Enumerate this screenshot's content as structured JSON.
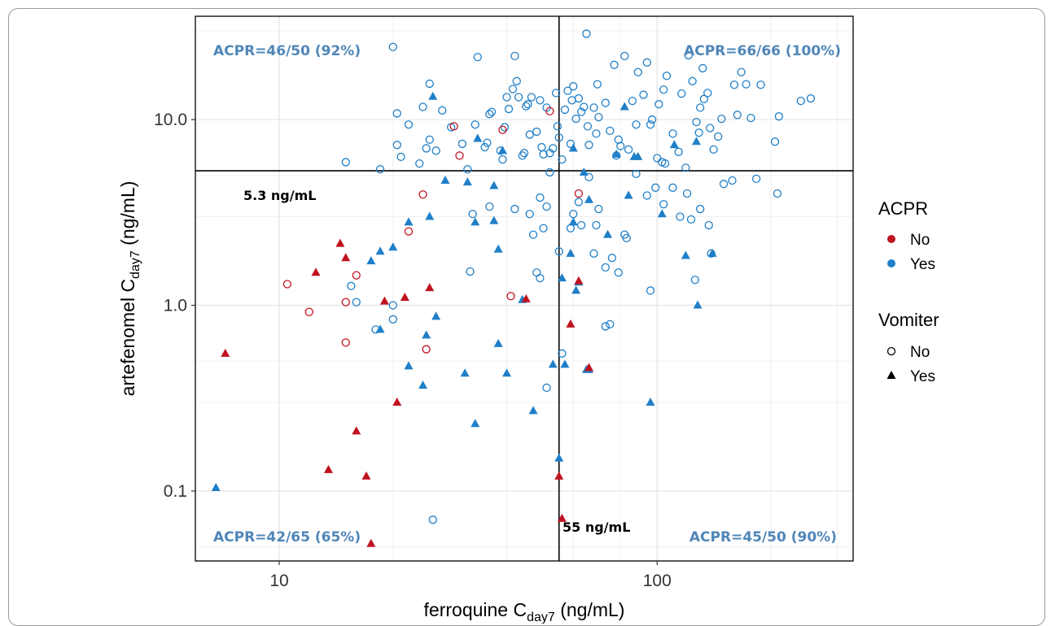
{
  "chart_data": {
    "type": "scatter",
    "xlabel": {
      "main": "ferroquine C",
      "sub": "day7",
      "unit": " (ng/mL)"
    },
    "ylabel": {
      "main": "artefenomel C",
      "sub": "day7",
      "unit": " (ng/mL)"
    },
    "xscale": "log",
    "yscale": "log",
    "xlim": [
      6,
      330
    ],
    "ylim": [
      0.042,
      36
    ],
    "x_ticks": [
      {
        "value": 10,
        "label": "10"
      },
      {
        "value": 100,
        "label": "100"
      }
    ],
    "y_ticks": [
      {
        "value": 0.1,
        "label": "0.1"
      },
      {
        "value": 1,
        "label": "1.0"
      },
      {
        "value": 10,
        "label": "10.0"
      }
    ],
    "grid": true,
    "colors": {
      "No": "#c1121f",
      "Yes": "#1f7fc8"
    },
    "thresholds": {
      "x": {
        "value": 55,
        "label": "55 ng/mL"
      },
      "y": {
        "value": 5.3,
        "label": "5.3 ng/mL"
      }
    },
    "quadrant_labels": {
      "top_left": "ACPR=46/50 (92%)",
      "top_right": "ACPR=66/66 (100%)",
      "bottom_left": "ACPR=42/65 (65%)",
      "bottom_right": "ACPR=45/50 (90%)"
    },
    "legend": {
      "position": "right",
      "acpr": {
        "title": "ACPR",
        "items": [
          {
            "label": "No",
            "color": "#c1121f"
          },
          {
            "label": "Yes",
            "color": "#1f7fc8"
          }
        ]
      },
      "vomiter": {
        "title": "Vomiter",
        "items": [
          {
            "label": "No",
            "shape": "open-circle"
          },
          {
            "label": "Yes",
            "shape": "triangle"
          }
        ]
      }
    },
    "series": [
      {
        "acpr": "Yes",
        "vomiter": "No",
        "points": [
          [
            20,
            24.6
          ],
          [
            15,
            5.9
          ],
          [
            18.5,
            5.4
          ],
          [
            20.5,
            10.8
          ],
          [
            20.5,
            7.3
          ],
          [
            21,
            6.3
          ],
          [
            22,
            9.4
          ],
          [
            23.5,
            5.8
          ],
          [
            24,
            11.7
          ],
          [
            24.5,
            7.0
          ],
          [
            25,
            7.8
          ],
          [
            25,
            15.6
          ],
          [
            26,
            6.8
          ],
          [
            27,
            11.2
          ],
          [
            28.5,
            9.1
          ],
          [
            30.5,
            7.4
          ],
          [
            31.5,
            5.4
          ],
          [
            33,
            9.4
          ],
          [
            33.5,
            21.7
          ],
          [
            35,
            7.1
          ],
          [
            35.5,
            7.5
          ],
          [
            36,
            10.7
          ],
          [
            36.5,
            11.0
          ],
          [
            38.5,
            6.8
          ],
          [
            39,
            6.1
          ],
          [
            39.5,
            9.1
          ],
          [
            40,
            13.2
          ],
          [
            40.5,
            11.4
          ],
          [
            41.5,
            14.6
          ],
          [
            42,
            22.0
          ],
          [
            42.5,
            16.1
          ],
          [
            43,
            13.2
          ],
          [
            44,
            6.4
          ],
          [
            44.5,
            6.6
          ],
          [
            45,
            11.8
          ],
          [
            45.5,
            12.1
          ],
          [
            46,
            8.3
          ],
          [
            46.5,
            13.2
          ],
          [
            48,
            8.6
          ],
          [
            49,
            12.7
          ],
          [
            49.5,
            7.1
          ],
          [
            50,
            6.5
          ],
          [
            51,
            11.6
          ],
          [
            52,
            6.6
          ],
          [
            53,
            7.0
          ],
          [
            54,
            13.9
          ],
          [
            54.5,
            9.2
          ],
          [
            55,
            8.0
          ],
          [
            56,
            6.1
          ],
          [
            57,
            11.3
          ],
          [
            58,
            14.3
          ],
          [
            59,
            7.4
          ],
          [
            59.5,
            12.7
          ],
          [
            60,
            15.1
          ],
          [
            61,
            10.1
          ],
          [
            62,
            13.0
          ],
          [
            63,
            11.0
          ],
          [
            64,
            11.7
          ],
          [
            65,
            29.0
          ],
          [
            65.5,
            9.2
          ],
          [
            66,
            7.3
          ],
          [
            68,
            11.6
          ],
          [
            69,
            8.4
          ],
          [
            69.5,
            15.5
          ],
          [
            70,
            10.3
          ],
          [
            73,
            12.3
          ],
          [
            75,
            8.7
          ],
          [
            77,
            19.7
          ],
          [
            78,
            6.4
          ],
          [
            79,
            7.8
          ],
          [
            80,
            7.2
          ],
          [
            82,
            22.0
          ],
          [
            84,
            6.9
          ],
          [
            86,
            12.6
          ],
          [
            88,
            9.4
          ],
          [
            89,
            18.0
          ],
          [
            92,
            13.6
          ],
          [
            94,
            20.3
          ],
          [
            96,
            9.4
          ],
          [
            97,
            10.0
          ],
          [
            100,
            6.2
          ],
          [
            101,
            12.1
          ],
          [
            103,
            5.9
          ],
          [
            104,
            14.5
          ],
          [
            105,
            5.8
          ],
          [
            106,
            17.2
          ],
          [
            110,
            8.4
          ],
          [
            114,
            6.7
          ],
          [
            116,
            13.8
          ],
          [
            119,
            5.5
          ],
          [
            121,
            22.2
          ],
          [
            124,
            16.1
          ],
          [
            127,
            9.7
          ],
          [
            129,
            8.5
          ],
          [
            130,
            11.6
          ],
          [
            132,
            18.9
          ],
          [
            133,
            12.9
          ],
          [
            136,
            13.9
          ],
          [
            138,
            9.0
          ],
          [
            141,
            6.9
          ],
          [
            145,
            8.1
          ],
          [
            148,
            10.1
          ],
          [
            160,
            15.4
          ],
          [
            163,
            10.6
          ],
          [
            167,
            18.0
          ],
          [
            172,
            15.5
          ],
          [
            177,
            10.2
          ],
          [
            188,
            15.4
          ],
          [
            205,
            7.6
          ],
          [
            210,
            10.4
          ],
          [
            240,
            12.6
          ],
          [
            255,
            13.0
          ],
          [
            15.5,
            1.27
          ],
          [
            16,
            1.04
          ],
          [
            18,
            0.74
          ],
          [
            20,
            1.0
          ],
          [
            20,
            0.84
          ],
          [
            32,
            1.52
          ],
          [
            32.5,
            3.1
          ],
          [
            36,
            3.4
          ],
          [
            42,
            3.3
          ],
          [
            46,
            3.1
          ],
          [
            47,
            2.4
          ],
          [
            48,
            1.5
          ],
          [
            49,
            1.4
          ],
          [
            49,
            3.8
          ],
          [
            50,
            2.6
          ],
          [
            51,
            3.4
          ],
          [
            52,
            5.2
          ],
          [
            55,
            1.95
          ],
          [
            59,
            2.6
          ],
          [
            60,
            3.1
          ],
          [
            62,
            3.6
          ],
          [
            63,
            2.7
          ],
          [
            66,
            4.9
          ],
          [
            68,
            1.9
          ],
          [
            69,
            2.7
          ],
          [
            70,
            3.3
          ],
          [
            73,
            1.6
          ],
          [
            76,
            1.8
          ],
          [
            79,
            1.5
          ],
          [
            82,
            2.4
          ],
          [
            83,
            2.3
          ],
          [
            88,
            5.1
          ],
          [
            94,
            3.9
          ],
          [
            96,
            1.2
          ],
          [
            99,
            4.3
          ],
          [
            104,
            3.5
          ],
          [
            110,
            4.3
          ],
          [
            115,
            3.0
          ],
          [
            120,
            4.0
          ],
          [
            123,
            2.9
          ],
          [
            126,
            1.37
          ],
          [
            130,
            3.3
          ],
          [
            137,
            2.7
          ],
          [
            139,
            1.9
          ],
          [
            150,
            4.5
          ],
          [
            158,
            4.7
          ],
          [
            183,
            4.8
          ],
          [
            208,
            4.0
          ],
          [
            25.5,
            0.07
          ],
          [
            51,
            0.36
          ],
          [
            56,
            0.55
          ],
          [
            73,
            0.77
          ],
          [
            75,
            0.79
          ]
        ]
      },
      {
        "acpr": "Yes",
        "vomiter": "Yes",
        "points": [
          [
            25.5,
            13.3
          ],
          [
            33.5,
            7.9
          ],
          [
            39,
            6.8
          ],
          [
            60,
            7.0
          ],
          [
            64,
            5.2
          ],
          [
            78,
            6.5
          ],
          [
            82,
            11.7
          ],
          [
            87,
            6.3
          ],
          [
            111,
            7.3
          ],
          [
            127,
            7.6
          ],
          [
            27.5,
            4.7
          ],
          [
            31.5,
            4.6
          ],
          [
            37,
            4.4
          ],
          [
            17.5,
            1.73
          ],
          [
            18.5,
            1.95
          ],
          [
            20,
            2.05
          ],
          [
            22,
            2.8
          ],
          [
            25,
            3.0
          ],
          [
            33,
            2.8
          ],
          [
            37,
            2.85
          ],
          [
            38,
            2.0
          ],
          [
            56,
            1.4
          ],
          [
            59,
            1.9
          ],
          [
            60,
            2.8
          ],
          [
            61,
            1.2
          ],
          [
            62,
            1.33
          ],
          [
            66,
            3.7
          ],
          [
            74,
            2.4
          ],
          [
            84,
            3.9
          ],
          [
            89,
            6.3
          ],
          [
            103,
            3.1
          ],
          [
            119,
            1.85
          ],
          [
            128,
            1.0
          ],
          [
            140,
            1.9
          ],
          [
            6.8,
            0.104
          ],
          [
            18.5,
            0.74
          ],
          [
            22,
            0.47
          ],
          [
            24,
            0.37
          ],
          [
            24.5,
            0.69
          ],
          [
            26,
            0.87
          ],
          [
            31,
            0.43
          ],
          [
            33,
            0.23
          ],
          [
            38,
            0.62
          ],
          [
            40,
            0.43
          ],
          [
            44,
            1.07
          ],
          [
            47,
            0.27
          ],
          [
            53,
            0.48
          ],
          [
            55,
            0.15
          ],
          [
            57,
            0.48
          ],
          [
            65,
            0.45
          ],
          [
            66,
            0.45
          ],
          [
            96,
            0.3
          ]
        ]
      },
      {
        "acpr": "No",
        "vomiter": "No",
        "points": [
          [
            10.5,
            1.3
          ],
          [
            12,
            0.92
          ],
          [
            15,
            1.04
          ],
          [
            15,
            0.63
          ],
          [
            16,
            1.45
          ],
          [
            22,
            2.5
          ],
          [
            24,
            3.95
          ],
          [
            24.5,
            0.58
          ],
          [
            29,
            9.2
          ],
          [
            30,
            6.4
          ],
          [
            39,
            8.8
          ],
          [
            41,
            1.12
          ],
          [
            52,
            11.1
          ],
          [
            62,
            4.0
          ]
        ]
      },
      {
        "acpr": "No",
        "vomiter": "Yes",
        "points": [
          [
            7.2,
            0.55
          ],
          [
            12.5,
            1.5
          ],
          [
            13.5,
            0.13
          ],
          [
            14.5,
            2.15
          ],
          [
            15,
            1.8
          ],
          [
            16,
            0.21
          ],
          [
            17,
            0.12
          ],
          [
            17.5,
            0.052
          ],
          [
            19,
            1.05
          ],
          [
            20.5,
            0.3
          ],
          [
            21.5,
            1.1
          ],
          [
            25,
            1.24
          ],
          [
            45,
            1.08
          ],
          [
            55,
            0.12
          ],
          [
            56,
            0.071
          ],
          [
            59,
            0.79
          ],
          [
            62,
            1.35
          ],
          [
            66,
            0.46
          ]
        ]
      }
    ]
  }
}
